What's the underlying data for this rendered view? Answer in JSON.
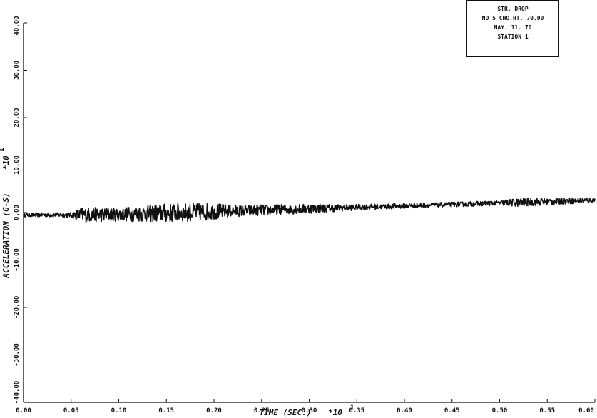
{
  "chart_data": {
    "type": "line",
    "title": "",
    "xlabel": "TIME (SEC.)",
    "x_multiplier": "*10",
    "x_multiplier_exp": "1",
    "ylabel": "ACCELERATION (G-S)",
    "y_multiplier": "*10",
    "y_multiplier_exp": "1",
    "xlim": [
      0.0,
      0.6
    ],
    "ylim": [
      -40.0,
      40.0
    ],
    "x_tick_labels": [
      "0.00",
      "0.05",
      "0.10",
      "0.15",
      "0.20",
      "0.25",
      "0.30",
      "0.35",
      "0.40",
      "0.45",
      "0.50",
      "0.55",
      "0.60"
    ],
    "x_tick_values": [
      0.0,
      0.05,
      0.1,
      0.15,
      0.2,
      0.25,
      0.3,
      0.35,
      0.4,
      0.45,
      0.5,
      0.55,
      0.6
    ],
    "y_tick_labels": [
      "40.00",
      "30.00",
      "20.00",
      "10.00",
      "0.00",
      "-10.00",
      "-20.00",
      "-30.00",
      "-40.00"
    ],
    "y_tick_values": [
      40,
      30,
      20,
      10,
      0,
      -10,
      -20,
      -30,
      -40
    ],
    "grid": false,
    "series": [
      {
        "color": "#111111",
        "trend_x": [
          0.0,
          0.05,
          0.1,
          0.15,
          0.2,
          0.25,
          0.3,
          0.35,
          0.4,
          0.45,
          0.5,
          0.55,
          0.6
        ],
        "trend_y": [
          -0.5,
          -0.5,
          -0.4,
          -0.1,
          0.2,
          0.5,
          0.8,
          1.1,
          1.4,
          1.7,
          2.0,
          2.3,
          2.6
        ],
        "noise_x": [
          0.0,
          0.05,
          0.06,
          0.1,
          0.15,
          0.2,
          0.22,
          0.3,
          0.35,
          0.4,
          0.5,
          0.52,
          0.6
        ],
        "noise_amp": [
          0.4,
          0.5,
          1.6,
          1.4,
          2.0,
          1.8,
          1.2,
          1.0,
          0.6,
          0.5,
          0.5,
          0.9,
          0.5
        ]
      }
    ],
    "legend": {
      "position": "top-right",
      "lines": [
        "STR. DROP",
        "NO 5  CHO.HT. 70.00",
        "MAY. 11. 70",
        "STATION 1"
      ]
    }
  }
}
